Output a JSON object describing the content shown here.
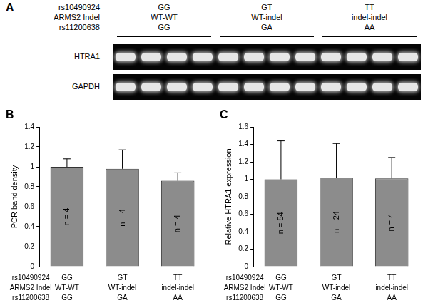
{
  "gel": {
    "panel": "A",
    "rows": [
      {
        "label": "rs10490924",
        "groups": [
          "GG",
          "GT",
          "TT"
        ]
      },
      {
        "label": "ARMS2 Indel",
        "groups": [
          "WT-WT",
          "WT-indel",
          "indel-indel"
        ]
      },
      {
        "label": "rs11200638",
        "groups": [
          "GG",
          "GA",
          "AA"
        ]
      }
    ],
    "bands": [
      "HTRA1",
      "GAPDH"
    ]
  },
  "chart_data": [
    {
      "panel": "B",
      "type": "bar",
      "y_label": "PCR band density",
      "category_rows": [
        "rs10490924",
        "ARMS2 Indel",
        "rs11200638"
      ],
      "categories": [
        [
          "GG",
          "WT-WT",
          "GG"
        ],
        [
          "GT",
          "WT-indel",
          "GA"
        ],
        [
          "TT",
          "indel-indel",
          "AA"
        ]
      ],
      "values": [
        1.0,
        0.98,
        0.86
      ],
      "errors": [
        0.08,
        0.19,
        0.08
      ],
      "bar_annotations": [
        "n = 4",
        "n = 4",
        "n = 4"
      ],
      "color": "#8c8c8c",
      "ylim": [
        0,
        1.4
      ],
      "yticks": [
        0,
        0.2,
        0.4,
        0.6,
        0.8,
        1,
        1.2,
        1.4
      ],
      "grid": false
    },
    {
      "panel": "C",
      "type": "bar",
      "y_label": "Relative HTRA1 expression",
      "category_rows": [
        "rs10490924",
        "ARMS2 Indel",
        "rs11200638"
      ],
      "categories": [
        [
          "GG",
          "WT-WT",
          "GG"
        ],
        [
          "GT",
          "WT-indel",
          "GA"
        ],
        [
          "TT",
          "indel-indel",
          "AA"
        ]
      ],
      "values": [
        1.0,
        1.02,
        1.01
      ],
      "errors": [
        0.44,
        0.39,
        0.24
      ],
      "bar_annotations": [
        "n = 54",
        "n = 24",
        "n = 4"
      ],
      "color": "#8c8c8c",
      "ylim": [
        0,
        1.6
      ],
      "yticks": [
        0,
        0.2,
        0.4,
        0.6,
        0.8,
        1,
        1.2,
        1.4,
        1.6
      ],
      "grid": false
    }
  ]
}
